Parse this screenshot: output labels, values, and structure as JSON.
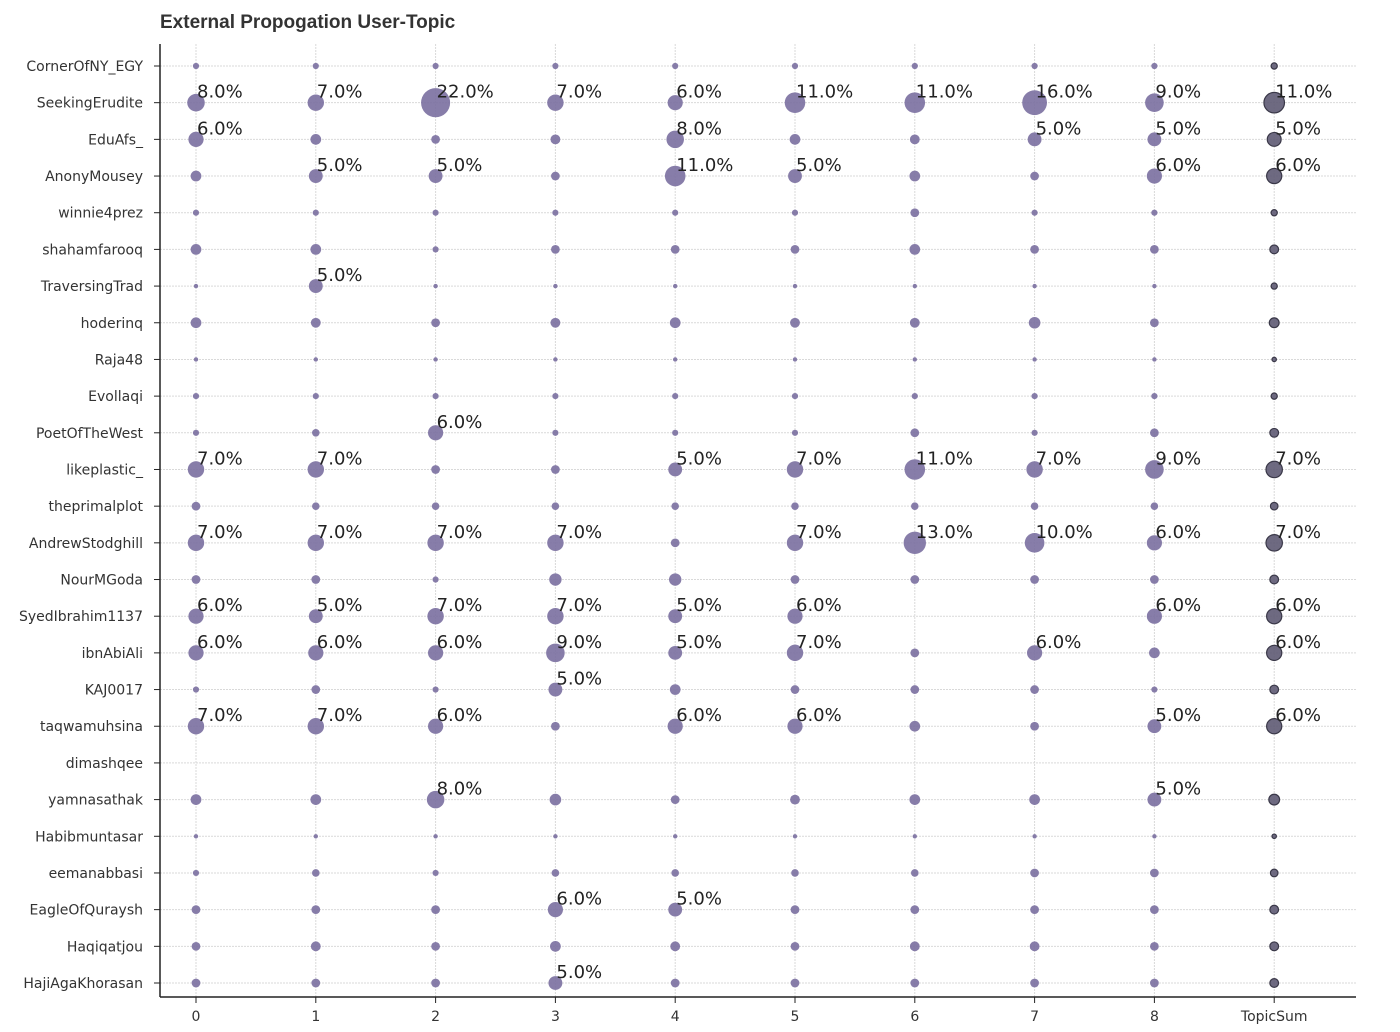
{
  "chart_data": {
    "type": "scatter",
    "title": "External Propogation User-Topic",
    "xlabel": "",
    "ylabel": "",
    "grid": true,
    "columns": [
      "0",
      "1",
      "2",
      "3",
      "4",
      "5",
      "6",
      "7",
      "8",
      "TopicSum"
    ],
    "rows": [
      "CornerOfNY_EGY",
      "SeekingErudite",
      "EduAfs_",
      "AnonyMousey",
      "winnie4prez",
      "shahamfarooq",
      "TraversingTrad",
      "hoderinq",
      "Raja48",
      "Evollaqi",
      "PoetOfTheWest",
      "likeplastic_",
      "theprimalplot",
      "AndrewStodghill",
      "NourMGoda",
      "SyedIbrahim1137",
      "ibnAbiAli",
      "KAJ0017",
      "taqwamuhsina",
      "dimashqee",
      "yamnasathak",
      "Habibmuntasar",
      "eemanabbasi",
      "EagleOfQuraysh",
      "Haqiqatjou",
      "HajiAgaKhorasan"
    ],
    "colors": {
      "bubble": "#7a6fa0",
      "sum_bubble": "#5e5a73",
      "sum_stroke": "#3a3848"
    },
    "values": [
      [
        1,
        1,
        1,
        1,
        1,
        1,
        1,
        1,
        1,
        1
      ],
      [
        8,
        7,
        22,
        7,
        6,
        11,
        11,
        16,
        9,
        11
      ],
      [
        6,
        3,
        2,
        2.5,
        8,
        3,
        2.5,
        5,
        5,
        5
      ],
      [
        3,
        5,
        5,
        2,
        11,
        5,
        3,
        2,
        6,
        6
      ],
      [
        1,
        1,
        1,
        1,
        1,
        1,
        2,
        1,
        1,
        1
      ],
      [
        3,
        3,
        1,
        2,
        2,
        2,
        3,
        2,
        2,
        2
      ],
      [
        0.5,
        5,
        0.5,
        0.5,
        0.5,
        0.5,
        0.5,
        0.5,
        0.5,
        1
      ],
      [
        3,
        2.5,
        2,
        2.5,
        3,
        2.5,
        2.5,
        3.5,
        2,
        2.5
      ],
      [
        0.5,
        0.5,
        0.5,
        0.5,
        0.5,
        0.5,
        0.5,
        0.5,
        0.5,
        0.5
      ],
      [
        1,
        1,
        1,
        1,
        1,
        1,
        1,
        1,
        1,
        1
      ],
      [
        1,
        1.5,
        6,
        1,
        1,
        1,
        2,
        1,
        2,
        2
      ],
      [
        7,
        7,
        2,
        2,
        5,
        7,
        11,
        7,
        9,
        7
      ],
      [
        2,
        1.5,
        1.5,
        1.5,
        1.5,
        1.5,
        1.5,
        1.5,
        1.5,
        1.5
      ],
      [
        7,
        7,
        7,
        7,
        2,
        7,
        13,
        10,
        6,
        7
      ],
      [
        2,
        2,
        1,
        4,
        4,
        2,
        2,
        2,
        2,
        2
      ],
      [
        6,
        5,
        7,
        7,
        5,
        6,
        0,
        0,
        6,
        6
      ],
      [
        6,
        6,
        6,
        9,
        5,
        7,
        2,
        6,
        3,
        6
      ],
      [
        1,
        2,
        1,
        5,
        3,
        2,
        2,
        2,
        1,
        2
      ],
      [
        7,
        7,
        6,
        2,
        6,
        6,
        3,
        2,
        5,
        6
      ],
      [
        0,
        0,
        0,
        0,
        0,
        0,
        0,
        0,
        0,
        0
      ],
      [
        3,
        3,
        8,
        3.5,
        2,
        2.5,
        3,
        3,
        5,
        3
      ],
      [
        0.5,
        0.5,
        0.5,
        0.5,
        0.5,
        0.5,
        0.5,
        0.5,
        0.5,
        0.5
      ],
      [
        1,
        1.5,
        1,
        1.5,
        1.5,
        1.5,
        1.5,
        2,
        2,
        1.5
      ],
      [
        2,
        2,
        2,
        6,
        5,
        2,
        2,
        2,
        2,
        2
      ],
      [
        2,
        2.5,
        2,
        3,
        2.5,
        2,
        2.5,
        2.5,
        2,
        2
      ],
      [
        2,
        2,
        2,
        5,
        2,
        2,
        2,
        2,
        2,
        2
      ]
    ],
    "labeled_cells": [
      [
        1,
        0,
        "8.0%"
      ],
      [
        1,
        1,
        "7.0%"
      ],
      [
        1,
        2,
        "22.0%"
      ],
      [
        1,
        3,
        "7.0%"
      ],
      [
        1,
        4,
        "6.0%"
      ],
      [
        1,
        5,
        "11.0%"
      ],
      [
        1,
        6,
        "11.0%"
      ],
      [
        1,
        7,
        "16.0%"
      ],
      [
        1,
        8,
        "9.0%"
      ],
      [
        1,
        9,
        "11.0%"
      ],
      [
        2,
        0,
        "6.0%"
      ],
      [
        2,
        4,
        "8.0%"
      ],
      [
        2,
        7,
        "5.0%"
      ],
      [
        2,
        8,
        "5.0%"
      ],
      [
        2,
        9,
        "5.0%"
      ],
      [
        3,
        1,
        "5.0%"
      ],
      [
        3,
        2,
        "5.0%"
      ],
      [
        3,
        4,
        "11.0%"
      ],
      [
        3,
        5,
        "5.0%"
      ],
      [
        3,
        8,
        "6.0%"
      ],
      [
        3,
        9,
        "6.0%"
      ],
      [
        6,
        1,
        "5.0%"
      ],
      [
        10,
        2,
        "6.0%"
      ],
      [
        11,
        0,
        "7.0%"
      ],
      [
        11,
        1,
        "7.0%"
      ],
      [
        11,
        4,
        "5.0%"
      ],
      [
        11,
        5,
        "7.0%"
      ],
      [
        11,
        6,
        "11.0%"
      ],
      [
        11,
        7,
        "7.0%"
      ],
      [
        11,
        8,
        "9.0%"
      ],
      [
        11,
        9,
        "7.0%"
      ],
      [
        13,
        0,
        "7.0%"
      ],
      [
        13,
        1,
        "7.0%"
      ],
      [
        13,
        2,
        "7.0%"
      ],
      [
        13,
        3,
        "7.0%"
      ],
      [
        13,
        5,
        "7.0%"
      ],
      [
        13,
        6,
        "13.0%"
      ],
      [
        13,
        7,
        "10.0%"
      ],
      [
        13,
        8,
        "6.0%"
      ],
      [
        13,
        9,
        "7.0%"
      ],
      [
        15,
        0,
        "6.0%"
      ],
      [
        15,
        1,
        "5.0%"
      ],
      [
        15,
        2,
        "7.0%"
      ],
      [
        15,
        3,
        "7.0%"
      ],
      [
        15,
        4,
        "5.0%"
      ],
      [
        15,
        5,
        "6.0%"
      ],
      [
        15,
        8,
        "6.0%"
      ],
      [
        15,
        9,
        "6.0%"
      ],
      [
        16,
        0,
        "6.0%"
      ],
      [
        16,
        1,
        "6.0%"
      ],
      [
        16,
        2,
        "6.0%"
      ],
      [
        16,
        3,
        "9.0%"
      ],
      [
        16,
        4,
        "5.0%"
      ],
      [
        16,
        5,
        "7.0%"
      ],
      [
        16,
        7,
        "6.0%"
      ],
      [
        16,
        9,
        "6.0%"
      ],
      [
        17,
        3,
        "5.0%"
      ],
      [
        18,
        0,
        "7.0%"
      ],
      [
        18,
        1,
        "7.0%"
      ],
      [
        18,
        2,
        "6.0%"
      ],
      [
        18,
        4,
        "6.0%"
      ],
      [
        18,
        5,
        "6.0%"
      ],
      [
        18,
        8,
        "5.0%"
      ],
      [
        18,
        9,
        "6.0%"
      ],
      [
        20,
        2,
        "8.0%"
      ],
      [
        20,
        8,
        "5.0%"
      ],
      [
        23,
        3,
        "6.0%"
      ],
      [
        23,
        4,
        "5.0%"
      ],
      [
        25,
        3,
        "5.0%"
      ]
    ]
  }
}
